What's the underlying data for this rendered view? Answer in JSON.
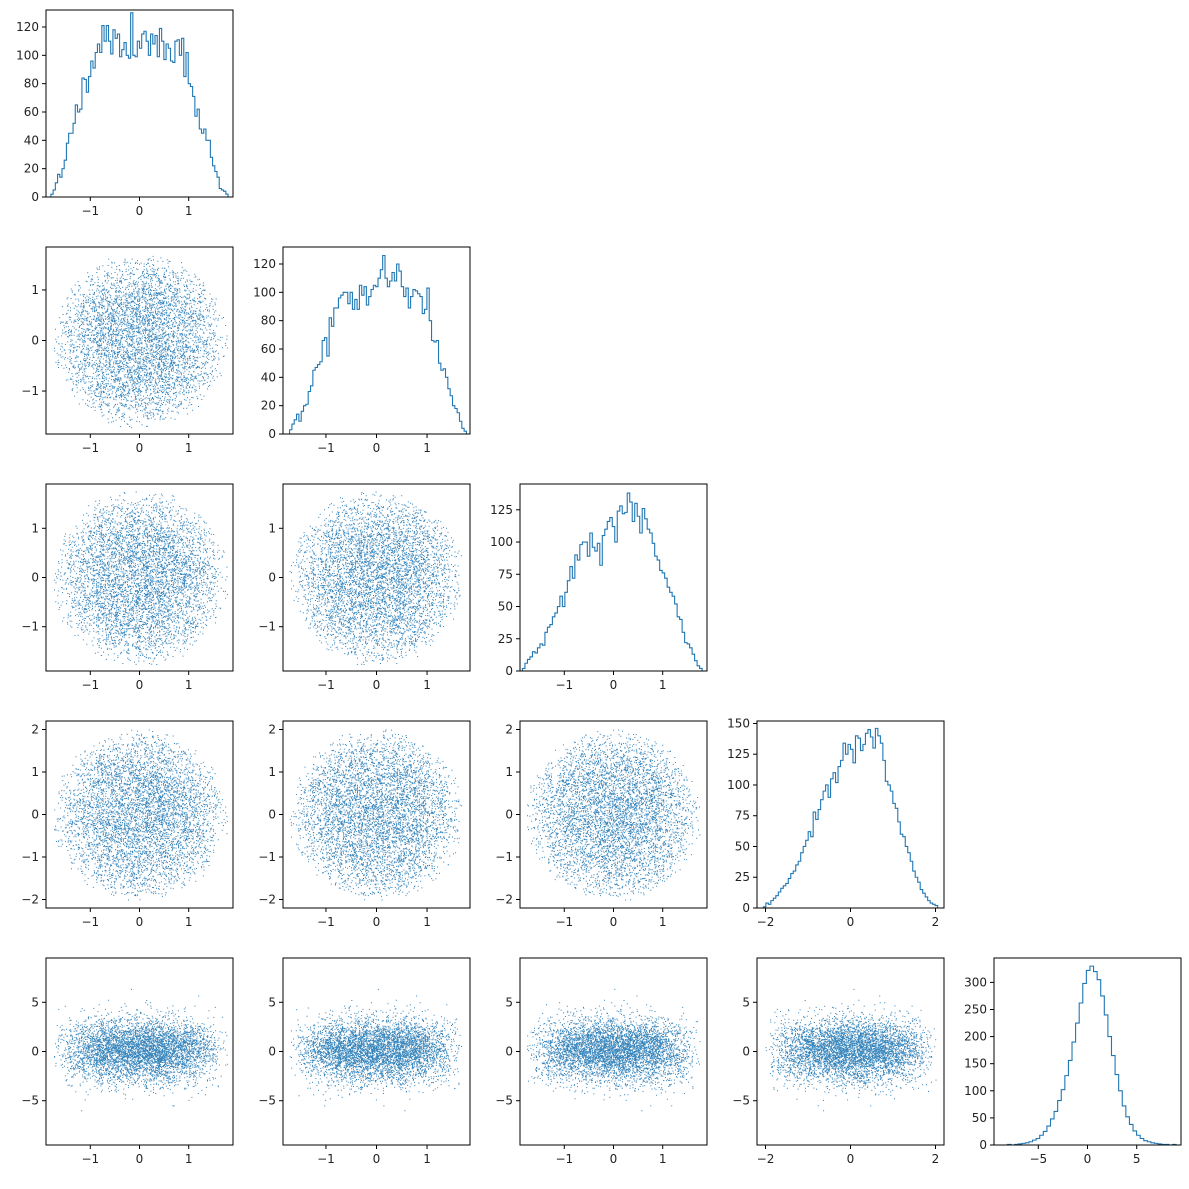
{
  "figure": {
    "kind": "corner plot",
    "color": "#1f77b4"
  },
  "chart_data": {
    "type": "scatter",
    "layout": "lower-triangular pair plot (corner plot), 5 parameters, histograms on diagonal",
    "grid": false,
    "params": [
      {
        "dist": "uniform-in-ball",
        "range": [
          -1.9,
          1.9
        ],
        "xticks": [
          -1,
          0,
          1
        ],
        "xtick_labels": [
          "−1",
          "0",
          "1"
        ],
        "yticks": [
          -1,
          0,
          1
        ],
        "ytick_labels": [
          "−1",
          "0",
          "1"
        ]
      },
      {
        "dist": "uniform-in-ball",
        "range": [
          -1.85,
          1.85
        ],
        "xticks": [
          -1,
          0,
          1
        ],
        "xtick_labels": [
          "−1",
          "0",
          "1"
        ],
        "yticks": [
          -1,
          0,
          1
        ],
        "ytick_labels": [
          "−1",
          "0",
          "1"
        ]
      },
      {
        "dist": "uniform-in-ball",
        "range": [
          -1.9,
          1.9
        ],
        "xticks": [
          -1,
          0,
          1
        ],
        "xtick_labels": [
          "−1",
          "0",
          "1"
        ],
        "yticks": [
          -1,
          0,
          1
        ],
        "ytick_labels": [
          "−1",
          "0",
          "1"
        ]
      },
      {
        "dist": "uniform-in-ball",
        "range": [
          -2.2,
          2.2
        ],
        "xticks": [
          -2,
          0,
          2
        ],
        "xtick_labels": [
          "−2",
          "0",
          "2"
        ],
        "yticks": [
          -2,
          -1,
          0,
          1,
          2
        ],
        "ytick_labels": [
          "−2",
          "−1",
          "0",
          "1",
          "2"
        ]
      },
      {
        "dist": "normal",
        "range": [
          -9.5,
          9.5
        ],
        "xticks": [
          -5,
          0,
          5
        ],
        "xtick_labels": [
          "−5",
          "0",
          "5"
        ],
        "yticks": [
          -5,
          0,
          5
        ],
        "ytick_labels": [
          "−5",
          "0",
          "5"
        ]
      }
    ],
    "diagonal_histograms": [
      {
        "ylim": [
          0,
          132
        ],
        "yticks": [
          0,
          20,
          40,
          60,
          80,
          100,
          120
        ],
        "ytick_labels": [
          "0",
          "20",
          "40",
          "60",
          "80",
          "100",
          "120"
        ],
        "x_range": [
          -1.8,
          1.8
        ],
        "counts": [
          2,
          5,
          10,
          16,
          14,
          20,
          26,
          38,
          45,
          45,
          52,
          65,
          60,
          62,
          84,
          83,
          74,
          85,
          96,
          91,
          102,
          108,
          102,
          121,
          110,
          121,
          110,
          101,
          118,
          112,
          115,
          99,
          104,
          109,
          100,
          98,
          130,
          100,
          99,
          110,
          105,
          115,
          117,
          110,
          100,
          115,
          108,
          114,
          99,
          119,
          110,
          97,
          108,
          105,
          96,
          95,
          110,
          111,
          100,
          112,
          85,
          102,
          80,
          78,
          71,
          57,
          62,
          48,
          45,
          48,
          40,
          40,
          28,
          22,
          18,
          14,
          6,
          5,
          4,
          2
        ]
      },
      {
        "ylim": [
          0,
          132
        ],
        "yticks": [
          0,
          20,
          40,
          60,
          80,
          100,
          120
        ],
        "ytick_labels": [
          "0",
          "20",
          "40",
          "60",
          "80",
          "100",
          "120"
        ],
        "x_range": [
          -1.72,
          1.78
        ],
        "counts": [
          3,
          7,
          10,
          14,
          9,
          16,
          20,
          21,
          30,
          34,
          45,
          47,
          49,
          51,
          66,
          68,
          55,
          82,
          76,
          89,
          89,
          96,
          98,
          100,
          100,
          92,
          100,
          88,
          95,
          88,
          105,
          98,
          104,
          91,
          97,
          102,
          105,
          104,
          110,
          116,
          126,
          110,
          104,
          108,
          114,
          108,
          120,
          115,
          104,
          97,
          103,
          89,
          97,
          102,
          101,
          99,
          97,
          85,
          88,
          103,
          80,
          66,
          65,
          66,
          50,
          45,
          46,
          40,
          32,
          27,
          20,
          18,
          15,
          9,
          4,
          2
        ]
      },
      {
        "ylim": [
          0,
          145
        ],
        "yticks": [
          0,
          25,
          50,
          75,
          100,
          125
        ],
        "ytick_labels": [
          "0",
          "25",
          "50",
          "75",
          "100",
          "125"
        ],
        "x_range": [
          -1.85,
          1.8
        ],
        "counts": [
          2,
          6,
          9,
          11,
          15,
          14,
          18,
          21,
          20,
          30,
          34,
          36,
          42,
          45,
          50,
          58,
          50,
          61,
          70,
          81,
          72,
          90,
          86,
          98,
          100,
          100,
          89,
          107,
          96,
          93,
          99,
          82,
          105,
          110,
          116,
          119,
          112,
          100,
          124,
          128,
          122,
          123,
          138,
          131,
          116,
          130,
          120,
          107,
          126,
          118,
          110,
          107,
          99,
          89,
          86,
          78,
          76,
          72,
          65,
          61,
          58,
          52,
          42,
          40,
          30,
          22,
          21,
          18,
          13,
          8,
          4,
          2
        ]
      },
      {
        "ylim": [
          0,
          152
        ],
        "yticks": [
          0,
          25,
          50,
          75,
          100,
          125,
          150
        ],
        "ytick_labels": [
          "0",
          "25",
          "50",
          "75",
          "100",
          "125",
          "150"
        ],
        "x_range": [
          -2.05,
          2.05
        ],
        "counts": [
          1,
          4,
          3,
          6,
          8,
          10,
          13,
          16,
          18,
          20,
          24,
          28,
          30,
          35,
          38,
          45,
          50,
          55,
          62,
          58,
          78,
          72,
          80,
          88,
          95,
          100,
          90,
          105,
          110,
          102,
          115,
          120,
          134,
          125,
          133,
          129,
          118,
          140,
          138,
          128,
          133,
          142,
          145,
          139,
          130,
          146,
          140,
          134,
          120,
          103,
          100,
          95,
          85,
          81,
          70,
          60,
          58,
          50,
          45,
          38,
          30,
          25,
          21,
          15,
          12,
          9,
          6,
          4,
          3,
          2
        ]
      },
      {
        "ylim": [
          0,
          345
        ],
        "yticks": [
          0,
          50,
          100,
          150,
          200,
          250,
          300
        ],
        "ytick_labels": [
          "0",
          "50",
          "100",
          "150",
          "200",
          "250",
          "300"
        ],
        "x_range": [
          -8.5,
          9.0
        ],
        "counts": [
          0,
          1,
          0,
          1,
          2,
          3,
          4,
          6,
          9,
          12,
          18,
          25,
          35,
          48,
          62,
          82,
          102,
          128,
          156,
          190,
          225,
          262,
          298,
          322,
          330,
          320,
          305,
          275,
          240,
          200,
          165,
          130,
          100,
          72,
          52,
          38,
          26,
          18,
          12,
          8,
          6,
          4,
          3,
          2,
          1,
          1,
          0,
          1
        ]
      }
    ],
    "scatter_points_per_panel": 5000,
    "scatter_note": "pairwise samples, no visible correlation; last parameter normal (sd ~1.6) vs four bounded ~uniform-ball parameters"
  }
}
